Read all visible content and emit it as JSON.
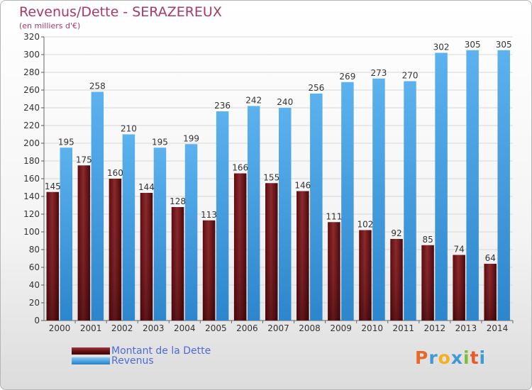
{
  "header": {
    "title": "Revenus/Dette - SERAZEREUX",
    "subtitle": "(en milliers d'€)"
  },
  "legend": {
    "debt_label": "Montant de la Dette",
    "revenue_label": "Revenus"
  },
  "logo": {
    "text": "Proxiti"
  },
  "colors": {
    "debt": "#6b1115",
    "revenue": "#4ea6e6",
    "text": "#333333"
  },
  "chart_data": {
    "type": "bar",
    "title": "Revenus/Dette - SERAZEREUX",
    "subtitle": "(en milliers d'€)",
    "categories": [
      "2000",
      "2001",
      "2002",
      "2003",
      "2004",
      "2005",
      "2006",
      "2007",
      "2008",
      "2009",
      "2010",
      "2011",
      "2012",
      "2013",
      "2014"
    ],
    "series": [
      {
        "name": "Montant de la Dette",
        "values": [
          145,
          175,
          160,
          144,
          128,
          113,
          166,
          155,
          146,
          111,
          102,
          92,
          85,
          74,
          64
        ]
      },
      {
        "name": "Revenus",
        "values": [
          195,
          258,
          210,
          195,
          199,
          236,
          242,
          240,
          256,
          269,
          273,
          270,
          302,
          305,
          305
        ]
      }
    ],
    "ylim": [
      0,
      320
    ],
    "yticks": [
      0,
      20,
      40,
      60,
      80,
      100,
      120,
      140,
      160,
      180,
      200,
      220,
      240,
      260,
      280,
      300,
      320
    ],
    "grid": true,
    "legend_position": "bottom-left"
  }
}
